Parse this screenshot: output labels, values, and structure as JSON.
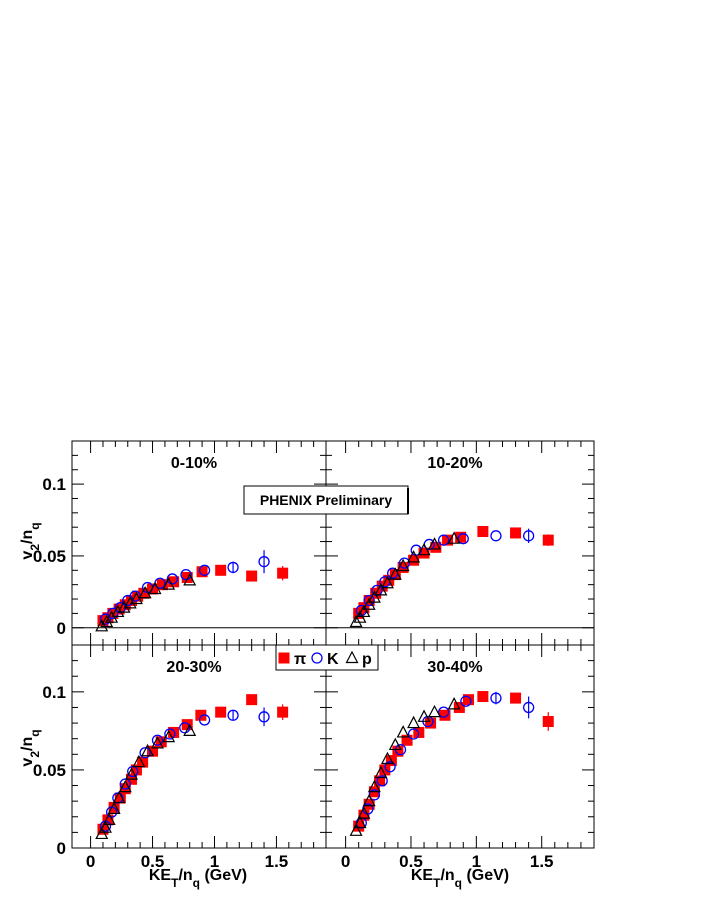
{
  "chart_data": {
    "type": "scatter",
    "annotation": "PHENIX Preliminary",
    "xlabel": {
      "main": "KE",
      "sub1": "T",
      "mid": "/n",
      "sub2": "q",
      "tail": " (GeV)"
    },
    "ylabel": {
      "main": "v",
      "sub1": "2",
      "mid": "/n",
      "sub2": "q"
    },
    "xlim": [
      -0.15,
      1.9
    ],
    "x_ticks": [
      0,
      0.5,
      1,
      1.5
    ],
    "x_tick_labels": [
      "0",
      "0.5",
      "1",
      "1.5"
    ],
    "legend": [
      {
        "name": "π",
        "marker": "filled-square",
        "color": "#ff0000"
      },
      {
        "name": "K",
        "marker": "open-circle",
        "color": "#0000ff"
      },
      {
        "name": "p",
        "marker": "open-triangle",
        "color": "#000000"
      }
    ],
    "panels": [
      {
        "label": "0-10%",
        "ylim": [
          -0.012,
          0.13
        ],
        "y_ticks": [
          0,
          0.05,
          0.1
        ],
        "y_tick_labels": [
          "0",
          "0.05",
          "0.1"
        ],
        "series": [
          {
            "name": "π",
            "points": [
              [
                0.1,
                0.005
              ],
              [
                0.14,
                0.007
              ],
              [
                0.18,
                0.01
              ],
              [
                0.23,
                0.013
              ],
              [
                0.28,
                0.016
              ],
              [
                0.33,
                0.019
              ],
              [
                0.38,
                0.022
              ],
              [
                0.43,
                0.024
              ],
              [
                0.5,
                0.027
              ],
              [
                0.58,
                0.03
              ],
              [
                0.67,
                0.032
              ],
              [
                0.78,
                0.035
              ],
              [
                0.9,
                0.039
              ],
              [
                1.05,
                0.04
              ],
              [
                1.3,
                0.036
              ],
              [
                1.55,
                0.038
              ]
            ],
            "errors": [
              0,
              0,
              0,
              0,
              0,
              0,
              0,
              0,
              0,
              0,
              0,
              0,
              0,
              0.002,
              0.003,
              0.005
            ]
          },
          {
            "name": "K",
            "points": [
              [
                0.12,
                0.006
              ],
              [
                0.18,
                0.01
              ],
              [
                0.24,
                0.014
              ],
              [
                0.3,
                0.019
              ],
              [
                0.36,
                0.022
              ],
              [
                0.46,
                0.028
              ],
              [
                0.56,
                0.031
              ],
              [
                0.66,
                0.034
              ],
              [
                0.77,
                0.037
              ],
              [
                0.92,
                0.04
              ],
              [
                1.15,
                0.042
              ],
              [
                1.4,
                0.046
              ]
            ],
            "errors": [
              0,
              0,
              0,
              0,
              0,
              0,
              0,
              0,
              0,
              0,
              0.004,
              0.008
            ]
          },
          {
            "name": "p",
            "points": [
              [
                0.09,
                0.001
              ],
              [
                0.13,
                0.004
              ],
              [
                0.17,
                0.007
              ],
              [
                0.22,
                0.011
              ],
              [
                0.27,
                0.014
              ],
              [
                0.32,
                0.017
              ],
              [
                0.37,
                0.02
              ],
              [
                0.44,
                0.024
              ],
              [
                0.52,
                0.027
              ],
              [
                0.63,
                0.03
              ],
              [
                0.8,
                0.033
              ]
            ],
            "errors": [
              0,
              0,
              0,
              0,
              0,
              0,
              0,
              0,
              0,
              0,
              0
            ]
          }
        ]
      },
      {
        "label": "10-20%",
        "ylim": [
          -0.012,
          0.13
        ],
        "y_ticks": [
          0,
          0.05,
          0.1
        ],
        "y_tick_labels": [
          "",
          "",
          ""
        ],
        "series": [
          {
            "name": "π",
            "points": [
              [
                0.1,
                0.01
              ],
              [
                0.14,
                0.014
              ],
              [
                0.18,
                0.019
              ],
              [
                0.23,
                0.024
              ],
              [
                0.28,
                0.029
              ],
              [
                0.33,
                0.033
              ],
              [
                0.38,
                0.037
              ],
              [
                0.44,
                0.042
              ],
              [
                0.52,
                0.047
              ],
              [
                0.6,
                0.052
              ],
              [
                0.69,
                0.056
              ],
              [
                0.78,
                0.061
              ],
              [
                0.88,
                0.063
              ],
              [
                1.05,
                0.067
              ],
              [
                1.3,
                0.066
              ],
              [
                1.55,
                0.061
              ]
            ],
            "errors": [
              0,
              0,
              0,
              0,
              0,
              0,
              0,
              0,
              0,
              0,
              0,
              0,
              0,
              0.002,
              0.002,
              0.004
            ]
          },
          {
            "name": "K",
            "points": [
              [
                0.12,
                0.012
              ],
              [
                0.18,
                0.019
              ],
              [
                0.24,
                0.026
              ],
              [
                0.3,
                0.032
              ],
              [
                0.36,
                0.038
              ],
              [
                0.45,
                0.045
              ],
              [
                0.54,
                0.054
              ],
              [
                0.64,
                0.058
              ],
              [
                0.75,
                0.061
              ],
              [
                0.9,
                0.062
              ],
              [
                1.15,
                0.064
              ],
              [
                1.4,
                0.064
              ]
            ],
            "errors": [
              0,
              0,
              0,
              0,
              0,
              0,
              0,
              0,
              0,
              0,
              0,
              0.005
            ]
          },
          {
            "name": "p",
            "points": [
              [
                0.08,
                0.004
              ],
              [
                0.11,
                0.007
              ],
              [
                0.14,
                0.011
              ],
              [
                0.18,
                0.016
              ],
              [
                0.22,
                0.021
              ],
              [
                0.27,
                0.026
              ],
              [
                0.32,
                0.031
              ],
              [
                0.38,
                0.037
              ],
              [
                0.44,
                0.043
              ],
              [
                0.52,
                0.049
              ],
              [
                0.6,
                0.054
              ],
              [
                0.68,
                0.058
              ],
              [
                0.83,
                0.062
              ]
            ],
            "errors": [
              0,
              0,
              0,
              0,
              0,
              0,
              0,
              0,
              0,
              0,
              0,
              0,
              0
            ]
          }
        ]
      },
      {
        "label": "20-30%",
        "ylim": [
          0,
          0.13
        ],
        "y_ticks": [
          0,
          0.05,
          0.1
        ],
        "y_tick_labels": [
          "0",
          "0.05",
          "0.1"
        ],
        "series": [
          {
            "name": "π",
            "points": [
              [
                0.1,
                0.012
              ],
              [
                0.14,
                0.018
              ],
              [
                0.19,
                0.026
              ],
              [
                0.24,
                0.032
              ],
              [
                0.28,
                0.038
              ],
              [
                0.33,
                0.044
              ],
              [
                0.37,
                0.05
              ],
              [
                0.42,
                0.055
              ],
              [
                0.5,
                0.062
              ],
              [
                0.57,
                0.068
              ],
              [
                0.67,
                0.074
              ],
              [
                0.78,
                0.079
              ],
              [
                0.89,
                0.085
              ],
              [
                1.05,
                0.087
              ],
              [
                1.3,
                0.095
              ],
              [
                1.55,
                0.087
              ]
            ],
            "errors": [
              0,
              0,
              0,
              0,
              0,
              0,
              0,
              0,
              0,
              0,
              0,
              0,
              0,
              0.002,
              0.003,
              0.005
            ]
          },
          {
            "name": "K",
            "points": [
              [
                0.12,
                0.014
              ],
              [
                0.17,
                0.023
              ],
              [
                0.22,
                0.032
              ],
              [
                0.28,
                0.041
              ],
              [
                0.34,
                0.049
              ],
              [
                0.44,
                0.061
              ],
              [
                0.54,
                0.069
              ],
              [
                0.64,
                0.073
              ],
              [
                0.76,
                0.077
              ],
              [
                0.92,
                0.082
              ],
              [
                1.15,
                0.085
              ],
              [
                1.4,
                0.084
              ]
            ],
            "errors": [
              0,
              0,
              0,
              0,
              0,
              0,
              0,
              0,
              0,
              0,
              0.003,
              0.006
            ]
          },
          {
            "name": "p",
            "points": [
              [
                0.09,
                0.009
              ],
              [
                0.12,
                0.013
              ],
              [
                0.15,
                0.018
              ],
              [
                0.19,
                0.025
              ],
              [
                0.23,
                0.032
              ],
              [
                0.28,
                0.039
              ],
              [
                0.33,
                0.047
              ],
              [
                0.39,
                0.055
              ],
              [
                0.46,
                0.062
              ],
              [
                0.54,
                0.067
              ],
              [
                0.63,
                0.071
              ],
              [
                0.8,
                0.075
              ]
            ],
            "errors": [
              0,
              0,
              0,
              0,
              0,
              0,
              0,
              0,
              0,
              0,
              0,
              0
            ]
          }
        ]
      },
      {
        "label": "30-40%",
        "ylim": [
          0,
          0.13
        ],
        "y_ticks": [
          0,
          0.05,
          0.1
        ],
        "y_tick_labels": [
          "",
          "",
          ""
        ],
        "series": [
          {
            "name": "π",
            "points": [
              [
                0.1,
                0.014
              ],
              [
                0.14,
                0.021
              ],
              [
                0.18,
                0.028
              ],
              [
                0.22,
                0.036
              ],
              [
                0.26,
                0.043
              ],
              [
                0.3,
                0.05
              ],
              [
                0.35,
                0.056
              ],
              [
                0.4,
                0.062
              ],
              [
                0.47,
                0.069
              ],
              [
                0.56,
                0.074
              ],
              [
                0.65,
                0.08
              ],
              [
                0.76,
                0.085
              ],
              [
                0.87,
                0.09
              ],
              [
                0.94,
                0.095
              ],
              [
                1.05,
                0.097
              ],
              [
                1.3,
                0.096
              ],
              [
                1.55,
                0.081
              ]
            ],
            "errors": [
              0,
              0,
              0,
              0,
              0,
              0,
              0,
              0,
              0,
              0,
              0,
              0,
              0,
              0,
              0.002,
              0.003,
              0.006
            ]
          },
          {
            "name": "K",
            "points": [
              [
                0.12,
                0.016
              ],
              [
                0.17,
                0.025
              ],
              [
                0.22,
                0.034
              ],
              [
                0.28,
                0.043
              ],
              [
                0.34,
                0.052
              ],
              [
                0.42,
                0.063
              ],
              [
                0.52,
                0.073
              ],
              [
                0.63,
                0.081
              ],
              [
                0.75,
                0.087
              ],
              [
                0.92,
                0.094
              ],
              [
                1.15,
                0.096
              ],
              [
                1.4,
                0.09
              ]
            ],
            "errors": [
              0,
              0,
              0,
              0,
              0,
              0,
              0,
              0,
              0,
              0,
              0.004,
              0.007
            ]
          },
          {
            "name": "p",
            "points": [
              [
                0.08,
                0.011
              ],
              [
                0.11,
                0.016
              ],
              [
                0.14,
                0.022
              ],
              [
                0.18,
                0.03
              ],
              [
                0.22,
                0.039
              ],
              [
                0.27,
                0.048
              ],
              [
                0.32,
                0.057
              ],
              [
                0.38,
                0.066
              ],
              [
                0.44,
                0.074
              ],
              [
                0.52,
                0.08
              ],
              [
                0.6,
                0.084
              ],
              [
                0.68,
                0.087
              ],
              [
                0.83,
                0.092
              ]
            ],
            "errors": [
              0,
              0,
              0,
              0,
              0,
              0,
              0,
              0,
              0,
              0,
              0,
              0,
              0
            ]
          }
        ]
      }
    ]
  }
}
